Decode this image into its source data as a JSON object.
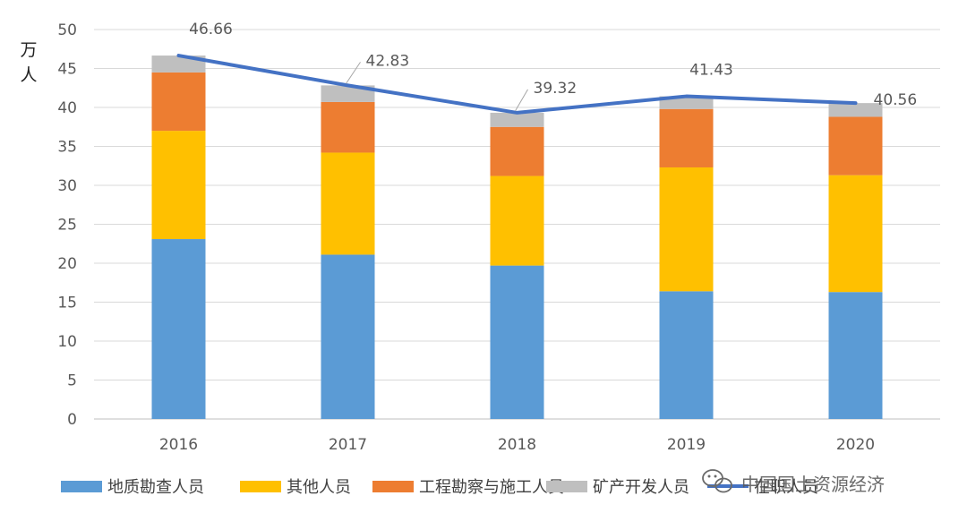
{
  "chart_data": {
    "type": "bar",
    "stacked": true,
    "categories": [
      "2016",
      "2017",
      "2018",
      "2019",
      "2020"
    ],
    "series": [
      {
        "name": "地质勘查人员",
        "type": "bar",
        "color": "#5B9BD5",
        "values": [
          23.1,
          21.1,
          19.7,
          16.4,
          16.3
        ]
      },
      {
        "name": "其他人员",
        "type": "bar",
        "color": "#FFC000",
        "values": [
          13.9,
          13.1,
          11.5,
          15.9,
          15.0
        ]
      },
      {
        "name": "工程勘察与施工人员",
        "type": "bar",
        "color": "#ED7D31",
        "values": [
          7.5,
          6.5,
          6.3,
          7.5,
          7.5
        ]
      },
      {
        "name": "矿产开发人员",
        "type": "bar",
        "color": "#BFBFBF",
        "values": [
          2.16,
          2.13,
          1.82,
          1.63,
          1.76
        ]
      },
      {
        "name": "在职人员",
        "type": "line",
        "color": "#4472C4",
        "values": [
          46.66,
          42.83,
          39.32,
          41.43,
          40.56
        ]
      }
    ],
    "data_labels": [
      "46.66",
      "42.83",
      "39.32",
      "41.43",
      "40.56"
    ],
    "ylabel": "万人",
    "ylim": [
      0,
      50
    ],
    "yticks": [
      "0",
      "5",
      "10",
      "15",
      "20",
      "25",
      "30",
      "35",
      "40",
      "45",
      "50"
    ],
    "grid": true,
    "legend_position": "bottom"
  },
  "watermark": "中国国土资源经济"
}
